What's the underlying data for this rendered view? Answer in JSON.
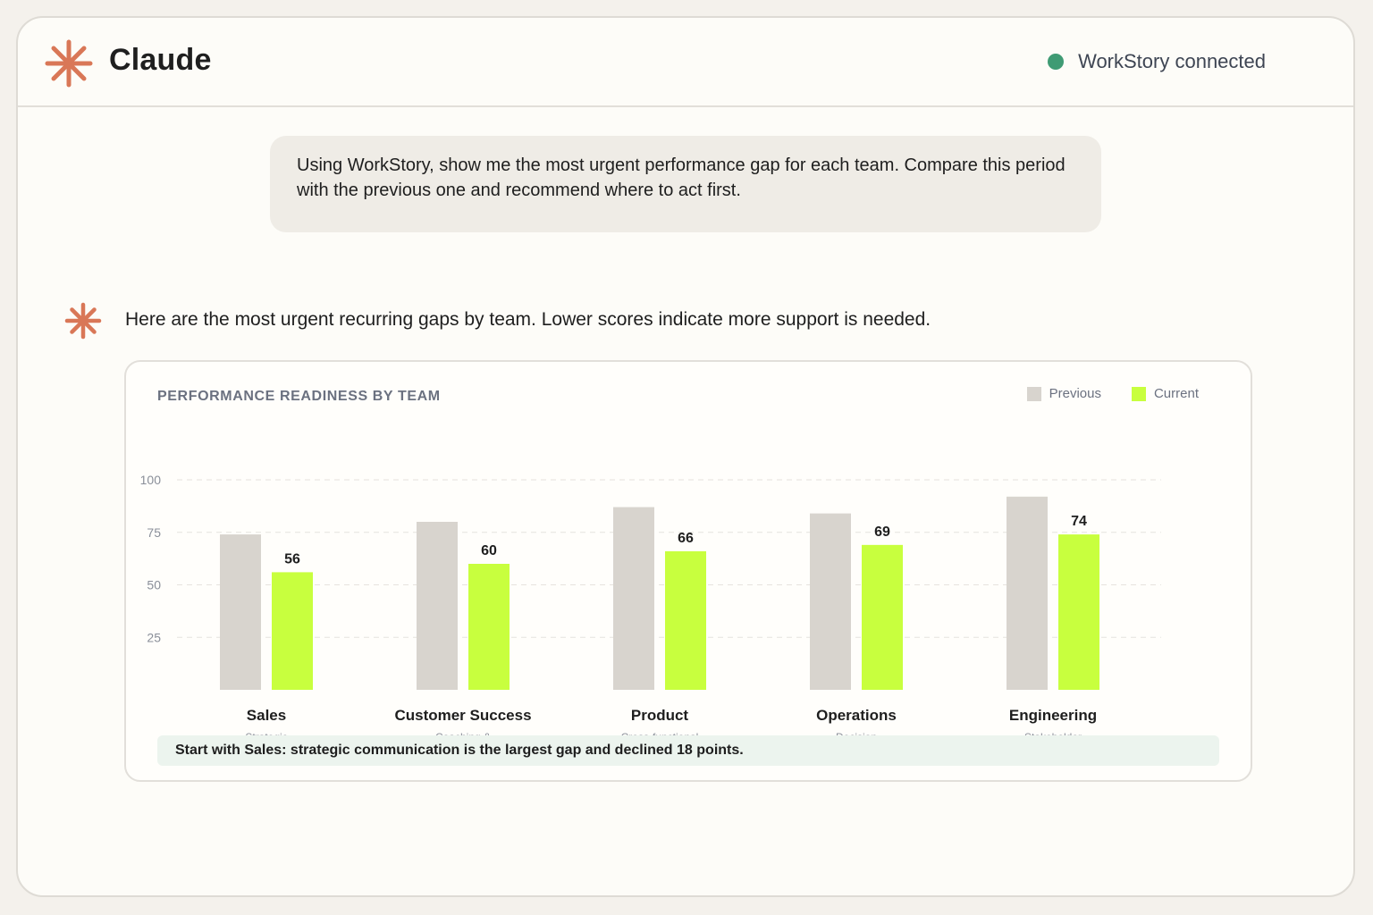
{
  "app": {
    "title": "Claude",
    "status": "WorkStory connected",
    "status_color": "#3f9b74",
    "brand_color": "#d97757",
    "logo_icon": "claude-asterisk-icon"
  },
  "user_message": "Using WorkStory, show me the most urgent performance gap for each team. Compare this period with the previous one and recommend where to act first.",
  "assistant_message": "Here are the most urgent recurring gaps by team. Lower scores indicate more support is needed.",
  "insight": "Start with Sales: strategic communication is the largest gap and declined 18 points.",
  "chart_data": {
    "type": "bar",
    "title": "PERFORMANCE READINESS BY TEAM",
    "categories": [
      "Sales",
      "Customer Success",
      "Product",
      "Operations",
      "Engineering"
    ],
    "subcategories": [
      "Strategic",
      "Coaching &",
      "Cross-functional",
      "Decision",
      "Stakeholder"
    ],
    "series": [
      {
        "name": "Previous",
        "values": [
          74,
          80,
          87,
          84,
          92
        ],
        "color": "#d8d4ce",
        "show_labels": false
      },
      {
        "name": "Current",
        "values": [
          56,
          60,
          66,
          69,
          74
        ],
        "color": "#c8ff3e",
        "show_labels": true
      }
    ],
    "yticks": [
      25,
      50,
      75,
      100
    ],
    "ylim": [
      0,
      100
    ],
    "grid": true,
    "legend_position": "top-right"
  }
}
